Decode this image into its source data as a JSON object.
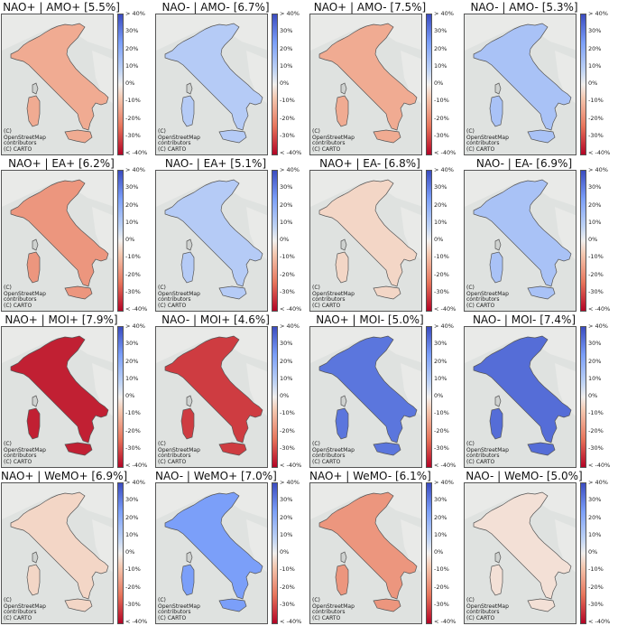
{
  "figure": {
    "credit": "(C)\nOpenStreetMap\ncontributors\n(C) CARTO",
    "colorbar_ticks": [
      "> 40%",
      "30%",
      "20%",
      "10%",
      "0%",
      "-10%",
      "-20%",
      "-30%",
      "< -40%"
    ]
  },
  "chart_data": {
    "type": "heatmap",
    "panels": [
      {
        "title": "NAO+ | AMO+ [5.5%]",
        "mean_anomaly": -12
      },
      {
        "title": "NAO- | AMO- [6.7%]",
        "mean_anomaly": 10
      },
      {
        "title": "NAO+ | AMO- [7.5%]",
        "mean_anomaly": -12
      },
      {
        "title": "NAO- | AMO- [5.3%]",
        "mean_anomaly": 12
      },
      {
        "title": "NAO+ | EA+ [6.2%]",
        "mean_anomaly": -15
      },
      {
        "title": "NAO- | EA+ [5.1%]",
        "mean_anomaly": 10
      },
      {
        "title": "NAO+ | EA- [6.8%]",
        "mean_anomaly": -5
      },
      {
        "title": "NAO- | EA- [6.9%]",
        "mean_anomaly": 12
      },
      {
        "title": "NAO+ | MOI+ [7.9%]",
        "mean_anomaly": -35
      },
      {
        "title": "NAO- | MOI+ [4.6%]",
        "mean_anomaly": -30
      },
      {
        "title": "NAO+ | MOI- [5.0%]",
        "mean_anomaly": 30
      },
      {
        "title": "NAO- | MOI- [7.4%]",
        "mean_anomaly": 32
      },
      {
        "title": "NAO+ | WeMO+ [6.9%]",
        "mean_anomaly": -5
      },
      {
        "title": "NAO- | WeMO+ [7.0%]",
        "mean_anomaly": 20
      },
      {
        "title": "NAO+ | WeMO- [6.1%]",
        "mean_anomaly": -15
      },
      {
        "title": "NAO- | WeMO- [5.0%]",
        "mean_anomaly": -3
      }
    ],
    "colorbar": {
      "range": [
        -40,
        40
      ],
      "colormap": "coolwarm",
      "ticks": [
        40,
        30,
        20,
        10,
        0,
        -10,
        -20,
        -30,
        -40
      ]
    }
  }
}
